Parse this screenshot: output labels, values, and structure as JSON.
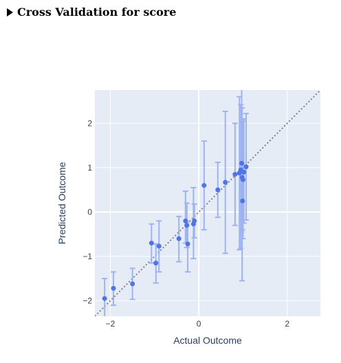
{
  "header": {
    "summary_label": "Cross Validation for score"
  },
  "colors": {
    "plot_bg": "#e5ecf6",
    "grid": "#ffffff",
    "marker": "#4f74e8",
    "errorbar": "#9db3f2",
    "diagonal": "#808080",
    "text": "#2a3f5f"
  },
  "chart_data": {
    "type": "scatter",
    "title": "",
    "xlabel": "Actual Outcome",
    "ylabel": "Predicted Outcome",
    "xlim": [
      -2.35,
      2.75
    ],
    "ylim": [
      -2.35,
      2.75
    ],
    "xticks": [
      -2,
      0,
      2
    ],
    "yticks": [
      -2,
      -1,
      0,
      1,
      2
    ],
    "xtick_labels": [
      "−2",
      "0",
      "2"
    ],
    "ytick_labels": [
      "−2",
      "−1",
      "0",
      "1",
      "2"
    ],
    "grid": true,
    "reference_line": "y = x",
    "points": [
      {
        "x": -2.13,
        "y": -1.95,
        "lo": -2.4,
        "hi": -1.5
      },
      {
        "x": -1.93,
        "y": -1.72,
        "lo": -2.1,
        "hi": -1.35
      },
      {
        "x": -1.5,
        "y": -1.62,
        "lo": -1.97,
        "hi": -1.27
      },
      {
        "x": -1.07,
        "y": -0.7,
        "lo": -1.15,
        "hi": -0.27
      },
      {
        "x": -0.97,
        "y": -1.15,
        "lo": -1.6,
        "hi": -0.72
      },
      {
        "x": -0.9,
        "y": -0.77,
        "lo": -1.35,
        "hi": -0.2
      },
      {
        "x": -0.45,
        "y": -0.6,
        "lo": -1.12,
        "hi": -0.1
      },
      {
        "x": -0.3,
        "y": -0.2,
        "lo": -0.7,
        "hi": 0.47
      },
      {
        "x": -0.27,
        "y": -0.3,
        "lo": -0.8,
        "hi": 0.2
      },
      {
        "x": -0.25,
        "y": -0.72,
        "lo": -1.35,
        "hi": -0.22
      },
      {
        "x": -0.12,
        "y": -0.27,
        "lo": -1.05,
        "hi": 0.55
      },
      {
        "x": -0.1,
        "y": -0.2,
        "lo": -0.58,
        "hi": 0.18
      },
      {
        "x": 0.12,
        "y": 0.6,
        "lo": -0.4,
        "hi": 1.6
      },
      {
        "x": 0.43,
        "y": 0.5,
        "lo": -0.12,
        "hi": 1.12
      },
      {
        "x": 0.6,
        "y": 0.67,
        "lo": -0.93,
        "hi": 2.27
      },
      {
        "x": 0.82,
        "y": 0.85,
        "lo": -0.3,
        "hi": 2.0
      },
      {
        "x": 0.92,
        "y": 0.88,
        "lo": -0.85,
        "hi": 2.6
      },
      {
        "x": 0.95,
        "y": 0.95,
        "lo": -0.82,
        "hi": 2.42
      },
      {
        "x": 0.97,
        "y": 1.1,
        "lo": -0.45,
        "hi": 2.78
      },
      {
        "x": 0.98,
        "y": 0.78,
        "lo": -1.55,
        "hi": 2.35
      },
      {
        "x": 0.99,
        "y": 0.25,
        "lo": -0.4,
        "hi": 1.0
      },
      {
        "x": 1.0,
        "y": 0.73,
        "lo": -0.6,
        "hi": 2.05
      },
      {
        "x": 1.02,
        "y": 0.9,
        "lo": -0.25,
        "hi": 2.1
      },
      {
        "x": 1.07,
        "y": 1.02,
        "lo": -0.18,
        "hi": 2.22
      }
    ]
  }
}
